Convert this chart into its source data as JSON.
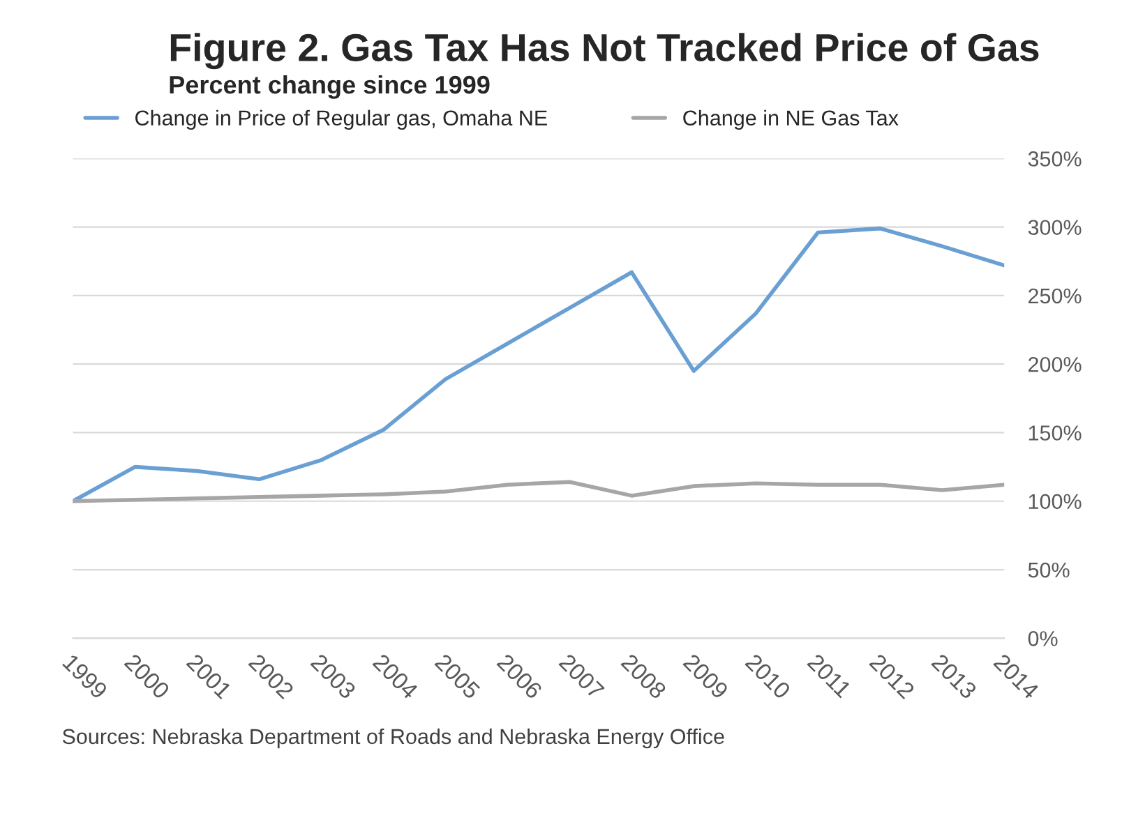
{
  "chart_data": {
    "type": "line",
    "title": "Figure 2. Gas Tax Has Not Tracked Price of Gas",
    "subtitle": "Percent change since 1999",
    "categories": [
      "1999",
      "2000",
      "2001",
      "2002",
      "2003",
      "2004",
      "2005",
      "2006",
      "2007",
      "2008",
      "2009",
      "2010",
      "2011",
      "2012",
      "2013",
      "2014"
    ],
    "series": [
      {
        "name": "Change in Price of Regular gas, Omaha NE",
        "color": "#6a9fd4",
        "values": [
          100,
          125,
          122,
          116,
          130,
          152,
          189,
          215,
          241,
          267,
          195,
          237,
          296,
          299,
          286,
          272
        ]
      },
      {
        "name": "Change in NE Gas Tax",
        "color": "#a6a6a6",
        "values": [
          100,
          101,
          102,
          103,
          104,
          105,
          107,
          112,
          114,
          104,
          111,
          113,
          112,
          112,
          108,
          112
        ]
      }
    ],
    "ylim": [
      0,
      350
    ],
    "yticks": [
      {
        "value": 0,
        "label": "0%"
      },
      {
        "value": 50,
        "label": "50%"
      },
      {
        "value": 100,
        "label": "100%"
      },
      {
        "value": 150,
        "label": "150%"
      },
      {
        "value": 200,
        "label": "200%"
      },
      {
        "value": 250,
        "label": "250%"
      },
      {
        "value": 300,
        "label": "300%"
      },
      {
        "value": 350,
        "label": "350%"
      }
    ],
    "grid": "y",
    "legend": "top",
    "marker": "none",
    "line_style": "solid",
    "annotations": [
      "Sources: Nebraska Department of Roads and Nebraska Energy Office"
    ]
  }
}
